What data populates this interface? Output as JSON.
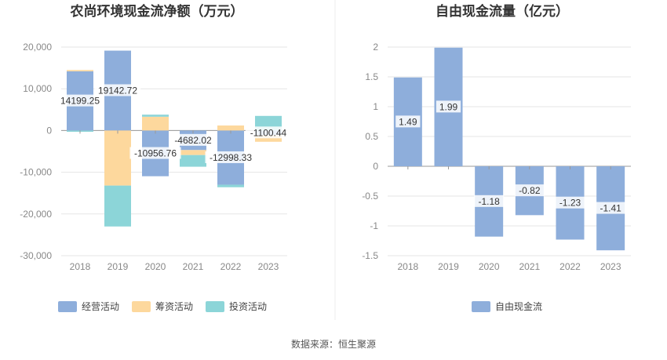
{
  "source": "数据来源：恒生聚源",
  "chart_data": [
    {
      "type": "bar",
      "stacked": true,
      "title": "农尚环境现金流净额（万元）",
      "categories": [
        "2018",
        "2019",
        "2020",
        "2021",
        "2022",
        "2023"
      ],
      "ylim": [
        -30000,
        20000
      ],
      "yticks": [
        20000,
        10000,
        0,
        -10000,
        -20000,
        -30000
      ],
      "ytick_labels": [
        "20,000",
        "10,000",
        "0",
        "-10,000",
        "-20,000",
        "-30,000"
      ],
      "grid": true,
      "legend_position": "bottom",
      "series": [
        {
          "name": "经营活动",
          "color": "#8eaedb",
          "values": [
            14199.25,
            19142.72,
            -10956.76,
            -4682.02,
            -12998.33,
            -1100.44
          ]
        },
        {
          "name": "筹资活动",
          "color": "#fdd89d",
          "values": [
            300,
            -13200,
            3300,
            -1200,
            1200,
            -1600
          ]
        },
        {
          "name": "投资活动",
          "color": "#8cd5d8",
          "values": [
            -300,
            -9800,
            500,
            -2800,
            -600,
            3500
          ]
        }
      ],
      "data_labels": [
        "14199.25",
        "19142.72",
        "-10956.76",
        "-4682.02",
        "-12998.33",
        "-1100.44"
      ]
    },
    {
      "type": "bar",
      "title": "自由现金流量（亿元）",
      "categories": [
        "2018",
        "2019",
        "2020",
        "2021",
        "2022",
        "2023"
      ],
      "ylim": [
        -1.5,
        2
      ],
      "yticks": [
        2,
        1.5,
        1,
        0.5,
        0,
        -0.5,
        -1,
        -1.5
      ],
      "ytick_labels": [
        "2",
        "1.5",
        "1",
        "0.5",
        "0",
        "-0.5",
        "-1",
        "-1.5"
      ],
      "grid": true,
      "legend_position": "bottom",
      "series": [
        {
          "name": "自由现金流",
          "color": "#8eaedb",
          "values": [
            1.49,
            1.99,
            -1.18,
            -0.82,
            -1.23,
            -1.41
          ]
        }
      ],
      "data_labels": [
        "1.49",
        "1.99",
        "-1.18",
        "-0.82",
        "-1.23",
        "-1.41"
      ]
    }
  ]
}
